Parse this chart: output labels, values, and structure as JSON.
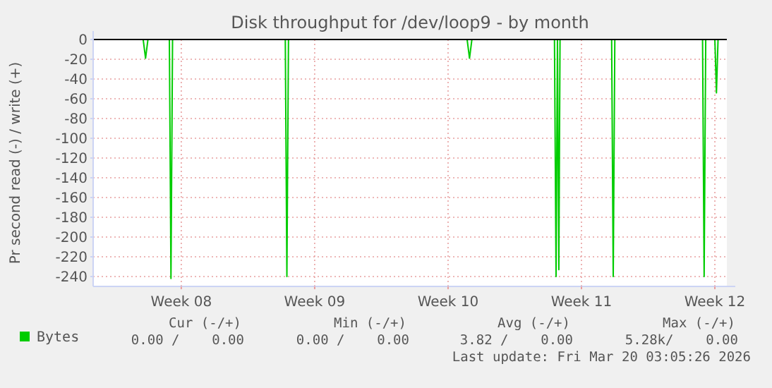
{
  "chart_data": {
    "type": "line",
    "title": "Disk throughput for /dev/loop9 - by month",
    "ylabel": "Pr second read (-) / write (+)",
    "series": [
      {
        "name": "Bytes",
        "color": "#00cc00",
        "x": [
          "2026-02-14T21:00",
          "2026-02-17T12:00",
          "2026-02-17T15:00",
          "2026-02-17T18:00",
          "2026-02-18T21:00",
          "2026-02-18T23:00",
          "2026-02-19T01:00",
          "2026-02-24T23:00",
          "2026-02-25T01:00",
          "2026-02-25T03:00",
          "2026-03-06T12:00",
          "2026-03-06T15:00",
          "2026-03-06T18:00",
          "2026-03-11T02:00",
          "2026-03-11T04:00",
          "2026-03-11T05:45",
          "2026-03-11T07:30",
          "2026-03-11T09:00",
          "2026-03-14T02:00",
          "2026-03-14T04:00",
          "2026-03-14T06:00",
          "2026-03-18T20:30",
          "2026-03-18T22:30",
          "2026-03-19T00:30",
          "2026-03-19T12:00",
          "2026-03-19T14:00",
          "2026-03-19T16:00",
          "2026-03-20T03:05"
        ],
        "values": [
          0,
          0,
          -19,
          0,
          0,
          -242,
          0,
          0,
          -240,
          0,
          0,
          -19,
          0,
          0,
          -240,
          0,
          -233,
          0,
          0,
          -240,
          0,
          0,
          -240,
          0,
          0,
          -54,
          0,
          0
        ]
      }
    ],
    "xlim": [
      "2026-02-14T21:00",
      "2026-03-20T03:05"
    ],
    "xticks": [
      {
        "value": "2026-02-19T12:00",
        "label": "Week 08"
      },
      {
        "value": "2026-02-26T12:00",
        "label": "Week 09"
      },
      {
        "value": "2026-03-05T12:00",
        "label": "Week 10"
      },
      {
        "value": "2026-03-12T12:00",
        "label": "Week 11"
      },
      {
        "value": "2026-03-19T12:00",
        "label": "Week 12"
      }
    ],
    "ylim": [
      -250,
      0
    ],
    "yticks": [
      -240,
      -220,
      -200,
      -180,
      -160,
      -140,
      -120,
      -100,
      -80,
      -60,
      -40,
      -20,
      0
    ],
    "grid": true,
    "legend": "bottom left",
    "marker": "none",
    "line_style": "solid",
    "ref_lines": [
      {
        "axis": "y",
        "value": 0,
        "color": "#000000"
      }
    ],
    "annotations": [
      "Cur (-/+)",
      "Min (-/+)",
      "Avg (-/+)",
      "Max (-/+)",
      "0.00 /    0.00",
      "0.00 /    0.00",
      "3.82 /    0.00",
      "5.28k/    0.00",
      "Last update: Fri Mar 20 03:05:26 2026"
    ]
  }
}
